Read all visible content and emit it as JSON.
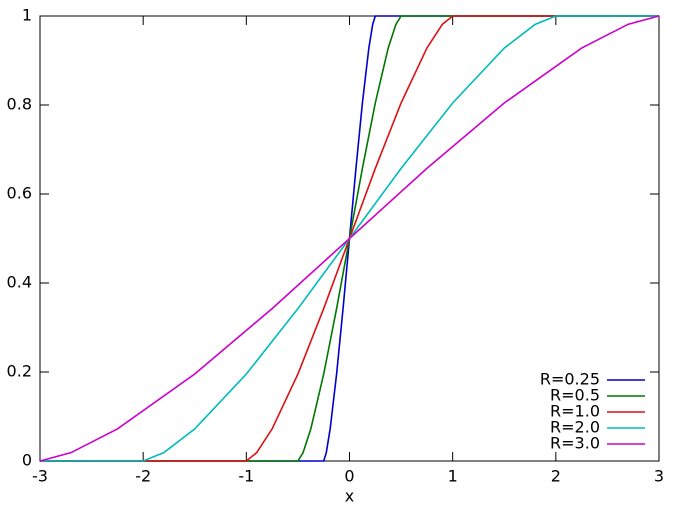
{
  "chart_data": {
    "type": "line",
    "x_label": "x",
    "xlim": [
      -3,
      3
    ],
    "xticks": [
      -3,
      -2,
      -1,
      0,
      1,
      2,
      3
    ],
    "ylim": [
      0,
      1
    ],
    "yticks": [
      0,
      0.2,
      0.4,
      0.6,
      0.8,
      1
    ],
    "legend": "lower right",
    "series": [
      {
        "name": "R=0.25",
        "color": "#0000cc",
        "x": [
          -3,
          -0.25,
          -0.225,
          -0.1875,
          -0.125,
          -0.0625,
          0,
          0.0625,
          0.125,
          0.1875,
          0.225,
          0.25,
          3
        ],
        "values": [
          0,
          0,
          0.0187,
          0.0721,
          0.1955,
          0.3425,
          0.5,
          0.6575,
          0.8045,
          0.9279,
          0.9813,
          1,
          1
        ]
      },
      {
        "name": "R=0.5",
        "color": "#007700",
        "x": [
          -3,
          -0.5,
          -0.45,
          -0.375,
          -0.25,
          -0.125,
          0,
          0.125,
          0.25,
          0.375,
          0.45,
          0.5,
          3
        ],
        "values": [
          0,
          0,
          0.0187,
          0.0721,
          0.1955,
          0.3425,
          0.5,
          0.6575,
          0.8045,
          0.9279,
          0.9813,
          1,
          1
        ]
      },
      {
        "name": "R=1.0",
        "color": "#dd1111",
        "x": [
          -3,
          -1,
          -0.9,
          -0.75,
          -0.5,
          -0.25,
          0,
          0.25,
          0.5,
          0.75,
          0.9,
          1,
          3
        ],
        "values": [
          0,
          0,
          0.0187,
          0.0721,
          0.1955,
          0.3425,
          0.5,
          0.6575,
          0.8045,
          0.9279,
          0.9813,
          1,
          1
        ]
      },
      {
        "name": "R=2.0",
        "color": "#00bbbb",
        "x": [
          -3,
          -2,
          -1.8,
          -1.5,
          -1,
          -0.5,
          0,
          0.5,
          1,
          1.5,
          1.8,
          2,
          3
        ],
        "values": [
          0,
          0,
          0.0187,
          0.0721,
          0.1955,
          0.3425,
          0.5,
          0.6575,
          0.8045,
          0.9279,
          0.9813,
          1,
          1
        ]
      },
      {
        "name": "R=3.0",
        "color": "#cc00cc",
        "x": [
          -3,
          -2.7,
          -2.25,
          -1.5,
          -0.75,
          0,
          0.75,
          1.5,
          2.25,
          2.7,
          3
        ],
        "values": [
          0,
          0.0187,
          0.0721,
          0.1955,
          0.3425,
          0.5,
          0.6575,
          0.8045,
          0.9279,
          0.9813,
          1
        ]
      }
    ]
  }
}
